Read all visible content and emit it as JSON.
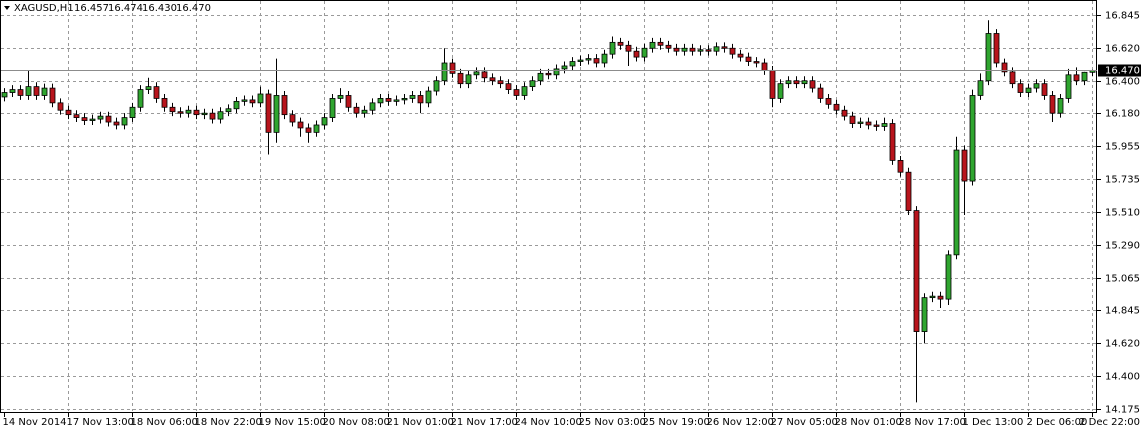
{
  "chart_data": {
    "type": "candlestick",
    "ohlc_label": {
      "symbol": "XAGUSD,H1",
      "open": "16.457",
      "high": "16.474",
      "low": "16.430",
      "close": "16.470"
    },
    "bull_color": "#2fa52f",
    "bear_color": "#b8141c",
    "grid": true,
    "ylim": [
      14.155,
      16.947
    ],
    "yticks": [
      16.845,
      {
        "value": 16.62,
        "label": "16.620"
      },
      {
        "value": 16.4,
        "label": "16.400"
      },
      {
        "value": 16.18,
        "label": "16.180"
      },
      15.955,
      15.735,
      {
        "value": 15.51,
        "label": "15.510"
      },
      {
        "value": 15.29,
        "label": "15.290"
      },
      15.065,
      14.845,
      {
        "value": 14.62,
        "label": "14.620"
      },
      {
        "value": 14.4,
        "label": "14.400"
      },
      14.175
    ],
    "price_line": {
      "value": 16.47,
      "label": "16.470"
    },
    "xticks": [
      {
        "value": 0,
        "label": "14 Nov 2014"
      },
      {
        "value": 8,
        "label": "17 Nov 13:00"
      },
      {
        "value": 16,
        "label": "18 Nov 06:00"
      },
      {
        "value": 24,
        "label": "18 Nov 22:00"
      },
      {
        "value": 32,
        "label": "19 Nov 15:00"
      },
      {
        "value": 40,
        "label": "20 Nov 08:00"
      },
      {
        "value": 48,
        "label": "21 Nov 01:00"
      },
      {
        "value": 56,
        "label": "21 Nov 17:00"
      },
      {
        "value": 64,
        "label": "24 Nov 10:00"
      },
      {
        "value": 72,
        "label": "25 Nov 03:00"
      },
      {
        "value": 80,
        "label": "25 Nov 19:00"
      },
      {
        "value": 88,
        "label": "26 Nov 12:00"
      },
      {
        "value": 96,
        "label": "27 Nov 05:00"
      },
      {
        "value": 104,
        "label": "28 Nov 01:00"
      },
      {
        "value": 112,
        "label": "28 Nov 17:00"
      },
      {
        "value": 120,
        "label": "1 Dec 13:00"
      },
      {
        "value": 128,
        "label": "2 Dec 06:00"
      },
      {
        "value": 136,
        "label": "2 Dec 22:00"
      }
    ],
    "open": [
      16.29,
      16.32,
      16.34,
      16.3,
      16.36,
      16.3,
      16.35,
      16.25,
      16.2,
      16.17,
      16.15,
      16.13,
      16.14,
      16.16,
      16.12,
      16.1,
      16.15,
      16.22,
      16.34,
      16.36,
      16.28,
      16.22,
      16.19,
      16.18,
      16.2,
      16.17,
      16.18,
      16.14,
      16.19,
      16.21,
      16.26,
      16.27,
      16.25,
      16.31,
      16.05,
      16.3,
      16.17,
      16.12,
      16.08,
      16.05,
      16.1,
      16.15,
      16.28,
      16.3,
      16.22,
      16.18,
      16.2,
      16.25,
      16.28,
      16.26,
      16.27,
      16.28,
      16.3,
      16.25,
      16.33,
      16.4,
      16.52,
      16.45,
      16.38,
      16.44,
      16.46,
      16.42,
      16.4,
      16.38,
      16.34,
      16.3,
      16.36,
      16.4,
      16.45,
      16.44,
      16.48,
      16.5,
      16.53,
      16.54,
      16.55,
      16.52,
      16.58,
      16.66,
      16.64,
      16.6,
      16.56,
      16.62,
      16.66,
      16.64,
      16.62,
      16.6,
      16.62,
      16.6,
      16.61,
      16.6,
      16.63,
      16.62,
      16.58,
      16.56,
      16.53,
      16.52,
      16.47,
      16.28,
      16.38,
      16.4,
      16.38,
      16.4,
      16.35,
      16.28,
      16.24,
      16.2,
      16.16,
      16.11,
      16.12,
      16.1,
      16.09,
      16.11,
      15.86,
      15.78,
      15.52,
      14.7,
      14.93,
      14.94,
      14.92,
      15.22,
      15.93,
      15.72,
      16.3,
      16.4,
      16.72,
      16.52,
      16.46,
      16.38,
      16.32,
      16.35,
      16.38,
      16.3,
      16.18,
      16.28,
      16.44,
      16.4,
      16.457
    ],
    "high": [
      16.35,
      16.37,
      16.37,
      16.47,
      16.39,
      16.38,
      16.38,
      16.28,
      16.23,
      16.2,
      16.18,
      16.17,
      16.19,
      16.19,
      16.15,
      16.18,
      16.25,
      16.37,
      16.42,
      16.39,
      16.31,
      16.25,
      16.22,
      16.23,
      16.23,
      16.21,
      16.21,
      16.22,
      16.24,
      16.29,
      16.3,
      16.3,
      16.36,
      16.34,
      16.55,
      16.33,
      16.2,
      16.15,
      16.11,
      16.13,
      16.18,
      16.31,
      16.35,
      16.33,
      16.25,
      16.23,
      16.28,
      16.31,
      16.31,
      16.3,
      16.31,
      16.33,
      16.33,
      16.36,
      16.43,
      16.62,
      16.55,
      16.48,
      16.47,
      16.49,
      16.49,
      16.45,
      16.43,
      16.41,
      16.37,
      16.39,
      16.43,
      16.48,
      16.48,
      16.51,
      16.53,
      16.56,
      16.57,
      16.58,
      16.58,
      16.61,
      16.7,
      16.69,
      16.67,
      16.63,
      16.65,
      16.69,
      16.69,
      16.67,
      16.65,
      16.65,
      16.65,
      16.64,
      16.64,
      16.66,
      16.66,
      16.65,
      16.61,
      16.59,
      16.56,
      16.55,
      16.5,
      16.41,
      16.43,
      16.43,
      16.43,
      16.43,
      16.38,
      16.31,
      16.27,
      16.23,
      16.19,
      16.15,
      16.15,
      16.13,
      16.15,
      16.14,
      15.89,
      15.81,
      15.55,
      14.96,
      14.97,
      14.97,
      15.25,
      16.02,
      15.96,
      16.34,
      16.45,
      16.81,
      16.75,
      16.55,
      16.49,
      16.41,
      16.38,
      16.41,
      16.41,
      16.33,
      16.31,
      16.48,
      16.49,
      16.46,
      16.474
    ],
    "low": [
      16.26,
      16.29,
      16.27,
      16.27,
      16.27,
      16.27,
      16.22,
      16.17,
      16.14,
      16.12,
      16.1,
      16.1,
      16.11,
      16.09,
      16.07,
      16.07,
      16.12,
      16.19,
      16.31,
      16.25,
      16.19,
      16.16,
      16.15,
      16.15,
      16.14,
      16.14,
      16.11,
      16.11,
      16.16,
      16.18,
      16.23,
      16.22,
      16.22,
      15.9,
      15.98,
      16.14,
      16.09,
      16.02,
      15.98,
      16.02,
      16.07,
      16.12,
      16.25,
      16.19,
      16.15,
      16.15,
      16.17,
      16.22,
      16.23,
      16.23,
      16.24,
      16.25,
      16.18,
      16.22,
      16.3,
      16.37,
      16.42,
      16.35,
      16.35,
      16.41,
      16.39,
      16.37,
      16.35,
      16.31,
      16.27,
      16.27,
      16.33,
      16.37,
      16.41,
      16.41,
      16.45,
      16.47,
      16.5,
      16.51,
      16.49,
      16.49,
      16.55,
      16.61,
      16.5,
      16.53,
      16.53,
      16.59,
      16.61,
      16.59,
      16.57,
      16.57,
      16.57,
      16.57,
      16.57,
      16.57,
      16.59,
      16.55,
      16.53,
      16.5,
      16.49,
      16.44,
      16.22,
      16.25,
      16.35,
      16.35,
      16.35,
      16.32,
      16.25,
      16.21,
      16.17,
      16.13,
      16.08,
      16.08,
      16.07,
      16.06,
      16.06,
      15.83,
      15.75,
      15.49,
      14.22,
      14.62,
      14.9,
      14.86,
      14.88,
      15.19,
      15.49,
      15.69,
      16.27,
      16.37,
      16.49,
      16.43,
      16.35,
      16.29,
      16.29,
      16.32,
      16.27,
      16.12,
      16.15,
      16.25,
      16.37,
      16.37,
      16.43
    ],
    "close": [
      16.32,
      16.34,
      16.3,
      16.36,
      16.3,
      16.35,
      16.25,
      16.2,
      16.17,
      16.15,
      16.13,
      16.14,
      16.16,
      16.12,
      16.1,
      16.15,
      16.22,
      16.34,
      16.36,
      16.28,
      16.22,
      16.19,
      16.18,
      16.2,
      16.17,
      16.18,
      16.14,
      16.19,
      16.21,
      16.26,
      16.27,
      16.25,
      16.31,
      16.05,
      16.3,
      16.17,
      16.12,
      16.08,
      16.05,
      16.1,
      16.15,
      16.28,
      16.3,
      16.22,
      16.18,
      16.2,
      16.25,
      16.28,
      16.26,
      16.27,
      16.28,
      16.3,
      16.25,
      16.33,
      16.4,
      16.52,
      16.45,
      16.38,
      16.44,
      16.46,
      16.42,
      16.4,
      16.38,
      16.34,
      16.3,
      16.36,
      16.4,
      16.45,
      16.44,
      16.48,
      16.5,
      16.53,
      16.54,
      16.55,
      16.52,
      16.58,
      16.66,
      16.64,
      16.6,
      16.56,
      16.62,
      16.66,
      16.64,
      16.62,
      16.6,
      16.62,
      16.6,
      16.61,
      16.6,
      16.63,
      16.62,
      16.58,
      16.56,
      16.53,
      16.52,
      16.47,
      16.28,
      16.38,
      16.4,
      16.38,
      16.4,
      16.35,
      16.28,
      16.24,
      16.2,
      16.16,
      16.11,
      16.12,
      16.1,
      16.09,
      16.11,
      15.86,
      15.78,
      15.52,
      14.7,
      14.93,
      14.94,
      14.92,
      15.22,
      15.93,
      15.72,
      16.3,
      16.4,
      16.72,
      16.52,
      16.46,
      16.38,
      16.32,
      16.35,
      16.38,
      16.3,
      16.18,
      16.28,
      16.44,
      16.4,
      16.457,
      16.47
    ]
  }
}
